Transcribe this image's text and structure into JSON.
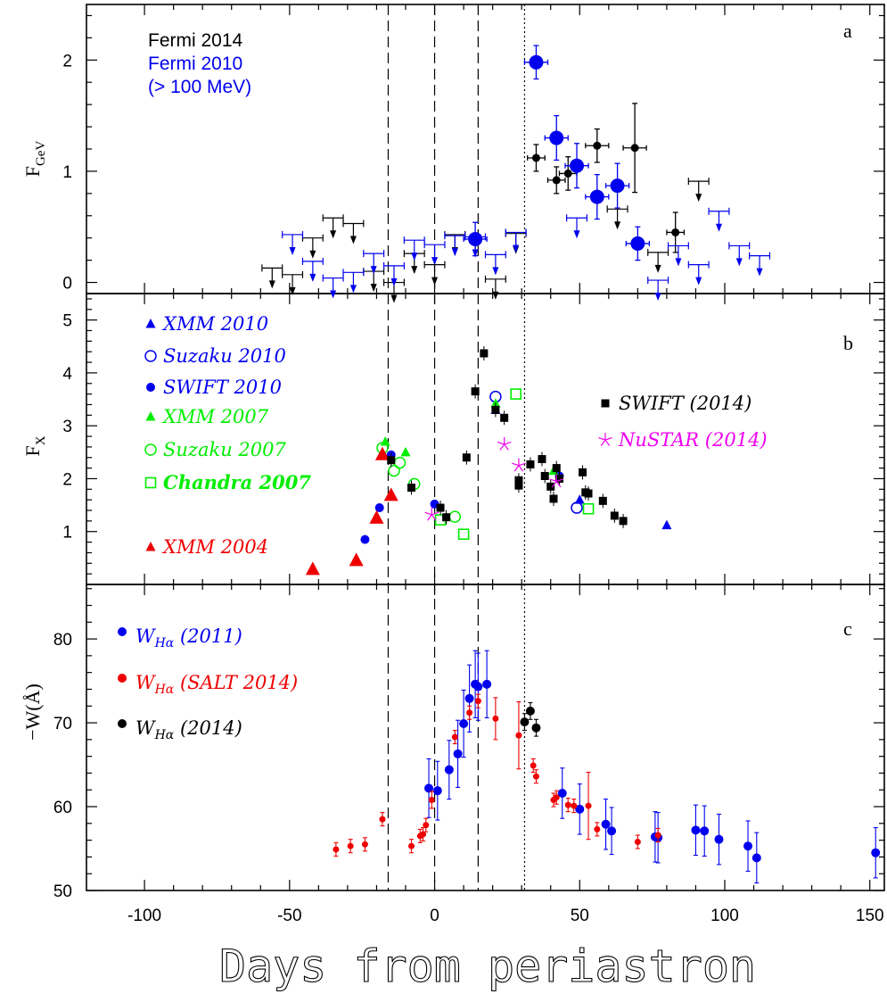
{
  "chart_data": {
    "type": "scatter",
    "xlabel": "Days from periastron",
    "xlim": [
      -120,
      155
    ],
    "x_ticks": [
      -100,
      -50,
      0,
      50,
      100,
      150
    ],
    "vlines": {
      "dashed": [
        -16,
        0,
        15
      ],
      "dotted": [
        31
      ]
    },
    "panels": [
      {
        "id": "a",
        "panel_label": "a",
        "ylabel": "F",
        "ylabel_sub": "GeV",
        "ylim": [
          -0.1,
          2.5
        ],
        "y_ticks": [
          0,
          1,
          2
        ],
        "legend_text": [
          {
            "text": "Fermi 2014",
            "color": "#000000"
          },
          {
            "text": "Fermi 2010",
            "color": "#0000ee"
          },
          {
            "text": "(> 100 MeV)",
            "color": "#0000ee"
          }
        ],
        "series": [
          {
            "name": "Fermi 2014",
            "color": "#000000",
            "marker": "circle-small",
            "points": [
              [
                35,
                1.12,
                0.12,
                3
              ],
              [
                42,
                0.92,
                0.12,
                3
              ],
              [
                46,
                0.98,
                0.15,
                3
              ],
              [
                56,
                1.23,
                0.15,
                4
              ],
              [
                69,
                1.21,
                0.4,
                4
              ],
              [
                83,
                0.45,
                0.18,
                3
              ]
            ]
          },
          {
            "name": "Fermi 2010",
            "color": "#0000ee",
            "marker": "circle-large",
            "points": [
              [
                14,
                0.39,
                0.15,
                4
              ],
              [
                35,
                1.98,
                0.15,
                4
              ],
              [
                42,
                1.3,
                0.2,
                4
              ],
              [
                49,
                1.05,
                0.2,
                4
              ],
              [
                56,
                0.77,
                0.2,
                4
              ],
              [
                63,
                0.87,
                0.2,
                4
              ],
              [
                70,
                0.35,
                0.15,
                4
              ]
            ]
          },
          {
            "name": "Fermi 2014 upper limits",
            "color": "#000000",
            "marker": "upper-limit",
            "points": [
              [
                -56,
                0.13
              ],
              [
                -49,
                0.07
              ],
              [
                -42,
                0.4
              ],
              [
                -35,
                0.58
              ],
              [
                -28,
                0.53
              ],
              [
                -21,
                0.1
              ],
              [
                -14,
                0.0
              ],
              [
                -7,
                0.26
              ],
              [
                0,
                0.16
              ],
              [
                7,
                0.43
              ],
              [
                21,
                0.03
              ],
              [
                28,
                0.44
              ],
              [
                63,
                0.66
              ],
              [
                77,
                0.27
              ],
              [
                91,
                0.91
              ]
            ]
          },
          {
            "name": "Fermi 2010 upper limits",
            "color": "#0000ee",
            "marker": "upper-limit",
            "points": [
              [
                -49,
                0.43
              ],
              [
                -42,
                0.19
              ],
              [
                -35,
                0.04
              ],
              [
                -28,
                0.09
              ],
              [
                -21,
                0.26
              ],
              [
                -14,
                0.15
              ],
              [
                -7,
                0.38
              ],
              [
                0,
                0.34
              ],
              [
                7,
                0.42
              ],
              [
                14,
                0.41
              ],
              [
                21,
                0.25
              ],
              [
                28,
                0.45
              ],
              [
                49,
                0.58
              ],
              [
                77,
                0.02
              ],
              [
                84,
                0.33
              ],
              [
                91,
                0.16
              ],
              [
                98,
                0.64
              ],
              [
                105,
                0.33
              ],
              [
                112,
                0.24
              ]
            ]
          }
        ]
      },
      {
        "id": "b",
        "panel_label": "b",
        "ylabel": "F",
        "ylabel_sub": "X",
        "ylim": [
          0,
          5.5
        ],
        "y_ticks": [
          1,
          2,
          3,
          4,
          5
        ],
        "series": [
          {
            "name": "XMM 2010",
            "color": "#0000ee",
            "marker": "triangle",
            "points": [
              [
                21,
                3.3
              ],
              [
                50,
                1.6
              ],
              [
                80,
                1.12
              ]
            ]
          },
          {
            "name": "Suzaku 2010",
            "color": "#0000ee",
            "marker": "circle-open",
            "points": [
              [
                21,
                3.55
              ],
              [
                49,
                1.45
              ]
            ]
          },
          {
            "name": "SWIFT 2010",
            "color": "#0000ee",
            "marker": "circle",
            "points": [
              [
                -24,
                0.85
              ],
              [
                -19,
                1.45
              ],
              [
                -15,
                2.45
              ],
              [
                0,
                1.52
              ],
              [
                43,
                2.05
              ]
            ]
          },
          {
            "name": "XMM 2007",
            "color": "#00ee00",
            "marker": "triangle",
            "points": [
              [
                -17,
                2.7
              ],
              [
                -10,
                2.5
              ],
              [
                21,
                3.42
              ],
              [
                41,
                2.15
              ]
            ]
          },
          {
            "name": "Suzaku 2007",
            "color": "#00ee00",
            "marker": "circle-open",
            "points": [
              [
                -18,
                2.58
              ],
              [
                -14,
                2.15
              ],
              [
                -12,
                2.3
              ],
              [
                -7,
                1.9
              ],
              [
                7,
                1.28
              ]
            ]
          },
          {
            "name": "Chandra 2007",
            "color": "#00ee00",
            "marker": "square-open",
            "points": [
              [
                2,
                1.22
              ],
              [
                10,
                0.95
              ],
              [
                28,
                3.6
              ],
              [
                53,
                1.43
              ]
            ]
          },
          {
            "name": "XMM 2004",
            "color": "#ee0000",
            "marker": "triangle-large",
            "points": [
              [
                -42,
                0.28
              ],
              [
                -27,
                0.45
              ],
              [
                -20,
                1.25
              ],
              [
                -18,
                2.45
              ],
              [
                -15,
                1.68
              ]
            ]
          },
          {
            "name": "SWIFT (2014)",
            "color": "#000000",
            "marker": "square",
            "points": [
              [
                -15,
                2.35
              ],
              [
                -8,
                1.83
              ],
              [
                2,
                1.45
              ],
              [
                4,
                1.27
              ],
              [
                11,
                2.4
              ],
              [
                14,
                3.65
              ],
              [
                17,
                4.37
              ],
              [
                21,
                3.3
              ],
              [
                24,
                3.15
              ],
              [
                29,
                1.97
              ],
              [
                29,
                1.87
              ],
              [
                33,
                2.27
              ],
              [
                37,
                2.37
              ],
              [
                38,
                2.05
              ],
              [
                40,
                1.85
              ],
              [
                41,
                1.62
              ],
              [
                42,
                2.2
              ],
              [
                43,
                2.0
              ],
              [
                51,
                2.12
              ],
              [
                52,
                1.74
              ],
              [
                53,
                1.72
              ],
              [
                58,
                1.58
              ],
              [
                62,
                1.3
              ],
              [
                65,
                1.2
              ]
            ]
          },
          {
            "name": "NuSTAR (2014)",
            "color": "#ee00ee",
            "marker": "star",
            "points": [
              [
                -1,
                1.32
              ],
              [
                24,
                2.65
              ],
              [
                29,
                2.25
              ],
              [
                42,
                1.95
              ]
            ]
          }
        ],
        "legend": [
          {
            "text": "XMM 2010",
            "color": "#0000ee",
            "marker": "triangle",
            "style": "italic"
          },
          {
            "text": "Suzaku 2010",
            "color": "#0000ee",
            "marker": "circle-open",
            "style": "italic"
          },
          {
            "text": "SWIFT 2010",
            "color": "#0000ee",
            "marker": "circle",
            "style": "italic"
          },
          {
            "text": "XMM 2007",
            "color": "#00ee00",
            "marker": "triangle",
            "style": "italic"
          },
          {
            "text": "Suzaku 2007",
            "color": "#00ee00",
            "marker": "circle-open",
            "style": "italic"
          },
          {
            "text": "Chandra 2007",
            "color": "#00ee00",
            "marker": "square-open",
            "style": "bold-italic"
          },
          {
            "text": "XMM 2004",
            "color": "#ee0000",
            "marker": "triangle",
            "style": "italic"
          },
          {
            "text": "SWIFT (2014)",
            "color": "#000000",
            "marker": "square",
            "style": "italic"
          },
          {
            "text": "NuSTAR (2014)",
            "color": "#ee00ee",
            "marker": "star",
            "style": "italic"
          }
        ]
      },
      {
        "id": "c",
        "panel_label": "c",
        "ylabel": "−W(Å)",
        "ylim": [
          50,
          86.5
        ],
        "y_ticks": [
          50,
          60,
          70,
          80
        ],
        "series": [
          {
            "name": "W_Hα (2011)",
            "color": "#0000ee",
            "marker": "circle",
            "points": [
              [
                -2,
                62.2,
                3.5
              ],
              [
                1,
                61.9,
                3.5
              ],
              [
                5,
                64.4,
                3.5
              ],
              [
                8,
                66.3,
                4
              ],
              [
                10,
                69.9,
                4
              ],
              [
                12,
                72.9,
                4
              ],
              [
                14,
                74.6,
                4
              ],
              [
                15,
                74.3,
                4
              ],
              [
                18,
                74.6,
                4
              ],
              [
                44,
                61.6,
                3
              ],
              [
                50,
                59.7,
                3
              ],
              [
                59,
                57.9,
                3
              ],
              [
                61,
                57.1,
                2.8
              ],
              [
                76,
                56.4,
                3
              ],
              [
                77,
                56.3,
                3
              ],
              [
                90,
                57.2,
                3
              ],
              [
                93,
                57.1,
                3
              ],
              [
                98,
                56.1,
                3
              ],
              [
                108,
                55.3,
                3
              ],
              [
                111,
                53.9,
                3
              ],
              [
                152,
                54.5,
                3
              ]
            ]
          },
          {
            "name": "W_Hα (SALT 2014)",
            "color": "#ee0000",
            "marker": "circle",
            "points": [
              [
                -34,
                54.9,
                0.8
              ],
              [
                -29,
                55.3,
                0.8
              ],
              [
                -24,
                55.5,
                0.8
              ],
              [
                -18,
                58.5,
                0.8
              ],
              [
                -8,
                55.3,
                0.8
              ],
              [
                -5,
                56.5,
                0.8
              ],
              [
                -4,
                56.7,
                0.8
              ],
              [
                -3,
                57.8,
                0.8
              ],
              [
                -1,
                60.8,
                1
              ],
              [
                7,
                68.3,
                0.8
              ],
              [
                12,
                71.2,
                0.8
              ],
              [
                15,
                72.6,
                0.8
              ],
              [
                21,
                70.5,
                2.5
              ],
              [
                29,
                68.5,
                4
              ],
              [
                34,
                64.9,
                0.8
              ],
              [
                35,
                63.6,
                0.8
              ],
              [
                41,
                60.8,
                0.8
              ],
              [
                42,
                61.1,
                0.8
              ],
              [
                46,
                60.2,
                0.8
              ],
              [
                48,
                60.1,
                0.8
              ],
              [
                53,
                60.1,
                4
              ],
              [
                56,
                57.3,
                0.8
              ],
              [
                70,
                55.8,
                0.8
              ],
              [
                77,
                56.6,
                0.8
              ]
            ]
          },
          {
            "name": "W_Hα (2014)",
            "color": "#000000",
            "marker": "circle",
            "points": [
              [
                31,
                70.1,
                1
              ],
              [
                33,
                71.4,
                1
              ],
              [
                35,
                69.4,
                1
              ]
            ]
          }
        ],
        "legend": [
          {
            "text": "W",
            "sub": "Hα",
            "rest": " (2011)",
            "color": "#0000ee"
          },
          {
            "text": "W",
            "sub": "Hα",
            "rest": " (SALT 2014)",
            "color": "#ee0000"
          },
          {
            "text": "W",
            "sub": "Hα",
            "rest": " (2014)",
            "color": "#000000"
          }
        ]
      }
    ]
  }
}
